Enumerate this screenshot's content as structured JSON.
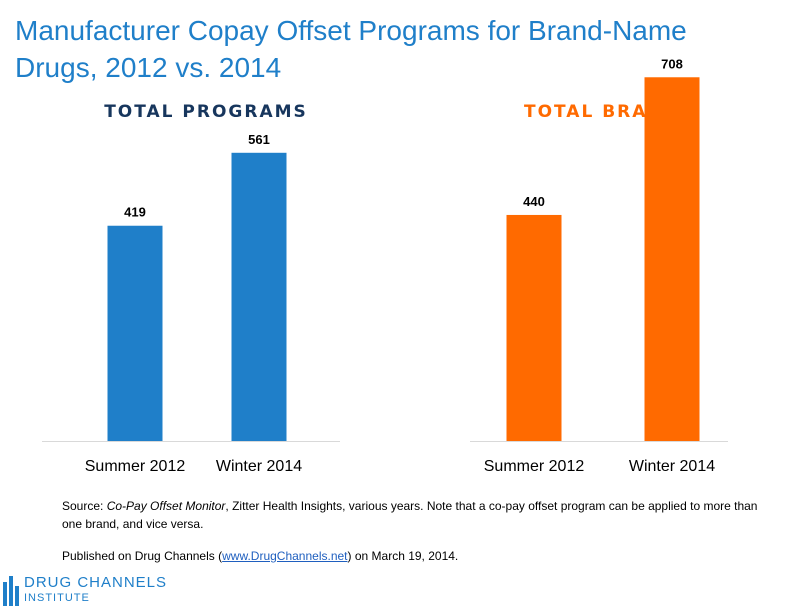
{
  "title_line1": "Manufacturer Copay Offset Programs for Brand-Name",
  "title_line2": "Drugs, 2012 vs. 2014",
  "colors": {
    "title": "#1f7fc9",
    "programs": "#1f7fc9",
    "brands": "#ff6a00",
    "programs_header": "#17365d",
    "brands_header": "#ff6a00"
  },
  "chart_data": [
    {
      "type": "bar",
      "title": "TOTAL PROGRAMS",
      "categories": [
        "Summer 2012",
        "Winter 2014"
      ],
      "values": [
        419,
        561
      ],
      "ylim": [
        0,
        800
      ]
    },
    {
      "type": "bar",
      "title": "TOTAL BRANDS",
      "categories": [
        "Summer 2012",
        "Winter 2014"
      ],
      "values": [
        440,
        708
      ],
      "ylim": [
        0,
        800
      ]
    }
  ],
  "source": {
    "prefix": "Source: ",
    "italic": "Co-Pay Offset Monitor",
    "rest": ", Zitter Health Insights, various years. Note that a co-pay offset program can be applied to more than one brand, and vice versa."
  },
  "published": {
    "prefix": "Published on Drug Channels (",
    "link": "www.DrugChannels.net",
    "suffix": ") on March 19, 2014."
  },
  "logo": {
    "line1": "DRUG CHANNELS",
    "line2": "INSTITUTE",
    "icon": "pill-bottles-icon"
  }
}
